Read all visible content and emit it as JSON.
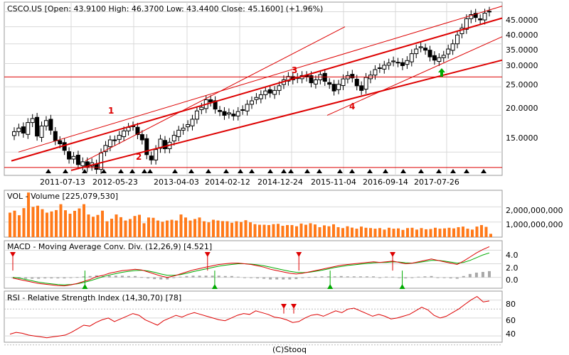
{
  "colors": {
    "red": "#dd0000",
    "green": "#00aa00",
    "volume": "#ff7a1a",
    "macd_hist": "#a8a8a8",
    "grid": "#d8d8d8",
    "frame": "#9a9a9a"
  },
  "price_panel": {
    "title": "CSCO.US [Open: 43.9100  High: 46.3700  Low: 43.4400  Close: 45.1600]  (+1.96%)",
    "y_ticks": [
      "45.0000",
      "40.0000",
      "35.0000",
      "30.0000",
      "25.0000",
      "20.0000",
      "15.0000"
    ],
    "x_ticks": [
      "2011-07-13",
      "2012-05-23",
      "2013-04-03",
      "2014-02-12",
      "2014-12-24",
      "2015-11-04",
      "2016-09-14",
      "2017-07-26"
    ],
    "annotations": [
      "1",
      "2",
      "3",
      "4"
    ]
  },
  "volume_panel": {
    "title": "VOL - Volume [225,079,530]",
    "y_ticks": [
      "2,000,000,000",
      "1,000,000,000"
    ]
  },
  "macd_panel": {
    "title": "MACD - Moving Average Conv. Div. (12,26,9) [4.521]",
    "y_ticks": [
      "4.0",
      "2.0",
      "0.0"
    ]
  },
  "rsi_panel": {
    "title": "RSI - Relative Strength Index (14,30,70) [78]",
    "y_ticks": [
      "80",
      "60",
      "40"
    ]
  },
  "footer": "(C)Stooq",
  "chart_data": [
    {
      "type": "candlestick",
      "symbol": "CSCO.US",
      "last": {
        "open": 43.91,
        "high": 46.37,
        "low": 43.44,
        "close": 45.16,
        "change_pct": 1.96
      },
      "y_scale": "log",
      "ylim": [
        12.5,
        48.5
      ],
      "x_range": [
        "2010-10-01",
        "2018-06-15"
      ],
      "horizontal_levels": [
        27.0,
        13.3
      ],
      "closes": [
        17.6,
        18.1,
        17.4,
        18.9,
        19.5,
        17.0,
        18.4,
        19.2,
        17.8,
        16.4,
        16.0,
        15.2,
        14.2,
        14.5,
        13.6,
        13.9,
        13.3,
        13.8,
        13.1,
        14.9,
        15.8,
        16.5,
        16.4,
        17.1,
        17.7,
        18.2,
        18.4,
        17.2,
        16.5,
        14.7,
        14.1,
        15.3,
        16.6,
        15.4,
        16.2,
        17.1,
        17.8,
        18.1,
        18.6,
        19.4,
        20.7,
        21.3,
        22.6,
        22.2,
        21.0,
        20.6,
        20.0,
        20.4,
        19.9,
        20.6,
        20.9,
        21.8,
        22.4,
        23.0,
        23.5,
        24.2,
        23.8,
        24.3,
        25.2,
        26.4,
        27.1,
        26.4,
        26.9,
        27.3,
        27.0,
        25.8,
        26.4,
        27.5,
        26.1,
        25.5,
        24.2,
        25.5,
        26.6,
        27.3,
        26.8,
        25.2,
        24.3,
        26.9,
        27.4,
        28.6,
        29.0,
        29.6,
        30.1,
        30.6,
        30.2,
        29.5,
        30.7,
        32.4,
        33.6,
        34.2,
        33.3,
        31.6,
        30.8,
        31.4,
        32.0,
        33.6,
        35.0,
        37.5,
        39.6,
        42.6,
        44.0,
        43.0,
        42.2,
        44.5,
        45.16
      ]
    },
    {
      "type": "bar",
      "name": "Volume",
      "last": 225079530,
      "ylim": [
        0,
        3100000000
      ],
      "values": [
        1620000000.0,
        1750000000.0,
        1450000000.0,
        1920000000.0,
        2950000000.0,
        2000000000.0,
        2080000000.0,
        1850000000.0,
        1620000000.0,
        1700000000.0,
        1790000000.0,
        2180000000.0,
        1780000000.0,
        1550000000.0,
        1740000000.0,
        1900000000.0,
        2180000000.0,
        1500000000.0,
        1350000000.0,
        1470000000.0,
        1750000000.0,
        1050000000.0,
        1220000000.0,
        1500000000.0,
        1320000000.0,
        1100000000.0,
        1200000000.0,
        1400000000.0,
        1480000000.0,
        920000000.0,
        1300000000.0,
        1280000000.0,
        1100000000.0,
        1020000000.0,
        1100000000.0,
        1150000000.0,
        1100000000.0,
        1500000000.0,
        1300000000.0,
        1100000000.0,
        1200000000.0,
        1300000000.0,
        1050000000.0,
        980000000.0,
        1150000000.0,
        1100000000.0,
        1060000000.0,
        1050000000.0,
        950000000.0,
        1050000000.0,
        1000000000.0,
        1120000000.0,
        980000000.0,
        860000000.0,
        820000000.0,
        820000000.0,
        800000000.0,
        860000000.0,
        880000000.0,
        750000000.0,
        800000000.0,
        800000000.0,
        720000000.0,
        900000000.0,
        820000000.0,
        920000000.0,
        840000000.0,
        660000000.0,
        780000000.0,
        720000000.0,
        850000000.0,
        660000000.0,
        600000000.0,
        720000000.0,
        630000000.0,
        560000000.0,
        700000000.0,
        620000000.0,
        600000000.0,
        560000000.0,
        600000000.0,
        500000000.0,
        620000000.0,
        560000000.0,
        580000000.0,
        480000000.0,
        600000000.0,
        620000000.0,
        500000000.0,
        600000000.0,
        520000000.0,
        540000000.0,
        620000000.0,
        560000000.0,
        580000000.0,
        620000000.0,
        580000000.0,
        660000000.0,
        700000000.0,
        560000000.0,
        500000000.0,
        700000000.0,
        800000000.0,
        680000000.0,
        220000000.0
      ]
    },
    {
      "type": "line",
      "name": "MACD (12,26,9)",
      "last": 4.521,
      "ylim": [
        -1.6,
        5.4
      ],
      "macd": [
        -0.1,
        -0.3,
        -0.5,
        -0.7,
        -0.9,
        -1.0,
        -1.1,
        -1.2,
        -1.25,
        -1.1,
        -0.9,
        -0.6,
        -0.3,
        0.1,
        0.3,
        0.6,
        0.8,
        1.0,
        1.1,
        1.2,
        1.1,
        0.8,
        0.5,
        0.2,
        0.0,
        0.2,
        0.5,
        0.8,
        1.1,
        1.3,
        1.5,
        1.7,
        1.9,
        2.0,
        2.1,
        2.1,
        2.0,
        1.9,
        1.7,
        1.5,
        1.2,
        1.0,
        0.8,
        0.6,
        0.5,
        0.6,
        0.8,
        1.0,
        1.2,
        1.4,
        1.6,
        1.8,
        1.9,
        2.0,
        2.1,
        2.2,
        2.3,
        2.2,
        2.3,
        2.4,
        2.2,
        2.0,
        2.1,
        2.3,
        2.5,
        2.7,
        2.5,
        2.3,
        2.1,
        1.9,
        2.4,
        3.0,
        3.6,
        4.1,
        4.521
      ],
      "signal": [
        0.0,
        -0.1,
        -0.3,
        -0.5,
        -0.7,
        -0.85,
        -0.95,
        -1.05,
        -1.1,
        -1.05,
        -0.95,
        -0.75,
        -0.5,
        -0.2,
        0.1,
        0.35,
        0.55,
        0.75,
        0.9,
        1.0,
        1.05,
        0.95,
        0.75,
        0.5,
        0.3,
        0.3,
        0.4,
        0.6,
        0.85,
        1.05,
        1.25,
        1.45,
        1.65,
        1.8,
        1.9,
        2.0,
        2.0,
        1.95,
        1.85,
        1.7,
        1.5,
        1.3,
        1.1,
        0.9,
        0.75,
        0.7,
        0.75,
        0.9,
        1.05,
        1.25,
        1.45,
        1.6,
        1.75,
        1.85,
        1.95,
        2.05,
        2.15,
        2.2,
        2.2,
        2.3,
        2.25,
        2.15,
        2.1,
        2.2,
        2.35,
        2.5,
        2.5,
        2.4,
        2.25,
        2.1,
        2.2,
        2.5,
        2.9,
        3.3,
        3.6
      ],
      "signal_markers_sell": [
        0.0,
        0.405,
        0.595,
        0.79
      ],
      "signal_markers_buy": [
        0.15,
        0.42,
        0.66,
        0.81
      ]
    },
    {
      "type": "line",
      "name": "RSI (14,30,70)",
      "last": 78,
      "ylim": [
        33,
        90
      ],
      "values": [
        42,
        44,
        43,
        41,
        40,
        39,
        38,
        39,
        40,
        41,
        44,
        48,
        52,
        51,
        55,
        58,
        60,
        56,
        59,
        62,
        65,
        63,
        58,
        55,
        52,
        57,
        60,
        63,
        61,
        64,
        66,
        64,
        62,
        60,
        58,
        57,
        60,
        63,
        65,
        64,
        68,
        66,
        64,
        61,
        60,
        58,
        55,
        56,
        60,
        63,
        64,
        62,
        65,
        68,
        66,
        70,
        71,
        68,
        65,
        62,
        64,
        62,
        59,
        60,
        62,
        64,
        68,
        72,
        69,
        63,
        60,
        62,
        66,
        70,
        75,
        80,
        84,
        78,
        79
      ]
    }
  ]
}
